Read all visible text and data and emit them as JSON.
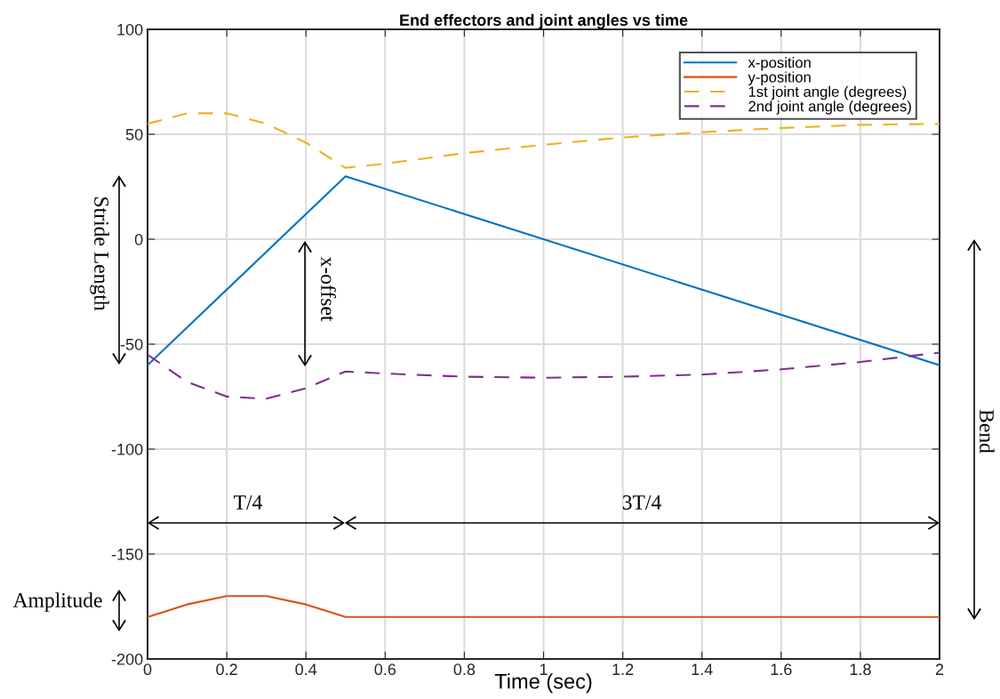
{
  "chart_data": {
    "type": "line",
    "title": "End effectors and joint angles vs time",
    "xlabel": "Time (sec)",
    "x": [
      0,
      0.1,
      0.2,
      0.3,
      0.4,
      0.5,
      0.6,
      0.8,
      1.0,
      1.2,
      1.4,
      1.6,
      1.8,
      2.0
    ],
    "series": [
      {
        "name": "x-position",
        "color": "#0072bd",
        "line_style": "solid",
        "x": [
          0,
          0.5,
          2
        ],
        "values": [
          -60,
          30,
          -60
        ]
      },
      {
        "name": "y-position",
        "color": "#d95319",
        "line_style": "solid",
        "x": [
          0,
          0.1,
          0.2,
          0.3,
          0.4,
          0.5,
          2
        ],
        "values": [
          -180,
          -174,
          -170,
          -170,
          -174,
          -180,
          -180
        ]
      },
      {
        "name": "1st joint angle (degrees)",
        "color": "#edb120",
        "line_style": "dashed",
        "values": [
          55,
          60,
          60,
          55,
          46,
          34,
          36,
          41,
          45,
          48.5,
          51,
          53,
          54.5,
          55
        ]
      },
      {
        "name": "2nd joint angle (degrees)",
        "color": "#7e2f8e",
        "line_style": "dashed",
        "values": [
          -55,
          -68,
          -75,
          -76,
          -71,
          -63,
          -64,
          -65.5,
          -66,
          -65.5,
          -64.5,
          -62,
          -58.5,
          -54
        ]
      }
    ],
    "xlim": [
      0,
      2
    ],
    "xticks": [
      0,
      0.2,
      0.4,
      0.6,
      0.8,
      1,
      1.2,
      1.4,
      1.6,
      1.8,
      2
    ],
    "ylim": [
      -200,
      100
    ],
    "yticks": [
      -200,
      -150,
      -100,
      -50,
      0,
      50,
      100
    ],
    "grid": true,
    "legend": "top right",
    "marker": "none",
    "annotations": [
      "Stride Length",
      "x-offset",
      "T/4",
      "3T/4",
      "Amplitude",
      "Bend"
    ]
  }
}
